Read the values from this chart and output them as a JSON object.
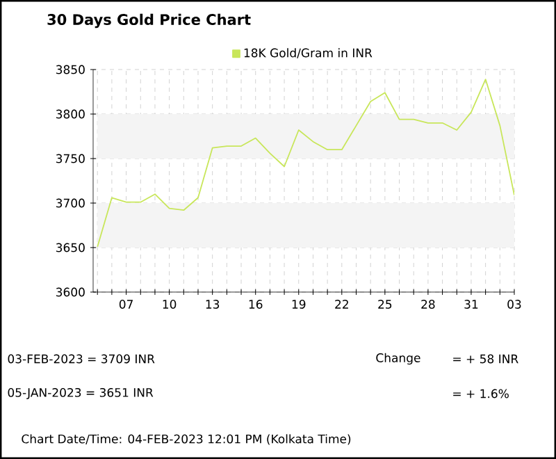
{
  "chart_data": {
    "type": "line",
    "title": "30 Days Gold Price Chart",
    "x": [
      "2023-01-05",
      "2023-01-06",
      "2023-01-07",
      "2023-01-08",
      "2023-01-09",
      "2023-01-10",
      "2023-01-11",
      "2023-01-12",
      "2023-01-13",
      "2023-01-14",
      "2023-01-15",
      "2023-01-16",
      "2023-01-17",
      "2023-01-18",
      "2023-01-19",
      "2023-01-20",
      "2023-01-21",
      "2023-01-22",
      "2023-01-23",
      "2023-01-24",
      "2023-01-25",
      "2023-01-26",
      "2023-01-27",
      "2023-01-28",
      "2023-01-29",
      "2023-01-30",
      "2023-01-31",
      "2023-02-01",
      "2023-02-02",
      "2023-02-03"
    ],
    "series": [
      {
        "name": "18K Gold/Gram  in INR",
        "color": "#c8e65a",
        "values": [
          3651,
          3706,
          3701,
          3701,
          3710,
          3694,
          3692,
          3706,
          3762,
          3764,
          3764,
          3773,
          3756,
          3741,
          3782,
          3769,
          3760,
          3760,
          3787,
          3814,
          3824,
          3794,
          3794,
          3790,
          3790,
          3782,
          3802,
          3839,
          3787,
          3709
        ]
      }
    ],
    "xlim": [
      "2023-01-05",
      "2023-02-03"
    ],
    "xticks": [
      {
        "value": "2023-01-05",
        "label": null
      },
      {
        "value": "2023-01-06",
        "label": null
      },
      {
        "value": "2023-01-07",
        "label": "07"
      },
      {
        "value": "2023-01-08",
        "label": null
      },
      {
        "value": "2023-01-09",
        "label": null
      },
      {
        "value": "2023-01-10",
        "label": "10"
      },
      {
        "value": "2023-01-11",
        "label": null
      },
      {
        "value": "2023-01-12",
        "label": null
      },
      {
        "value": "2023-01-13",
        "label": "13"
      },
      {
        "value": "2023-01-14",
        "label": null
      },
      {
        "value": "2023-01-15",
        "label": null
      },
      {
        "value": "2023-01-16",
        "label": "16"
      },
      {
        "value": "2023-01-17",
        "label": null
      },
      {
        "value": "2023-01-18",
        "label": null
      },
      {
        "value": "2023-01-19",
        "label": "19"
      },
      {
        "value": "2023-01-20",
        "label": null
      },
      {
        "value": "2023-01-21",
        "label": null
      },
      {
        "value": "2023-01-22",
        "label": "22"
      },
      {
        "value": "2023-01-23",
        "label": null
      },
      {
        "value": "2023-01-24",
        "label": null
      },
      {
        "value": "2023-01-25",
        "label": "25"
      },
      {
        "value": "2023-01-26",
        "label": null
      },
      {
        "value": "2023-01-27",
        "label": null
      },
      {
        "value": "2023-01-28",
        "label": "28"
      },
      {
        "value": "2023-01-29",
        "label": null
      },
      {
        "value": "2023-01-30",
        "label": null
      },
      {
        "value": "2023-01-31",
        "label": "31"
      },
      {
        "value": "2023-02-01",
        "label": null
      },
      {
        "value": "2023-02-02",
        "label": null
      },
      {
        "value": "2023-02-03",
        "label": "03"
      }
    ],
    "ylim": [
      3600,
      3850
    ],
    "yticks": [
      3600,
      3650,
      3700,
      3750,
      3800,
      3850
    ],
    "bands": [
      {
        "axis": "y",
        "from": 3650,
        "to": 3700,
        "color": "#f4f4f4"
      },
      {
        "axis": "y",
        "from": 3750,
        "to": 3800,
        "color": "#f4f4f4"
      }
    ],
    "grid": true,
    "legend": "top",
    "marker": "none",
    "line_style": "solid",
    "annotations": [
      "03-FEB-2023 = 3709 INR",
      "05-JAN-2023 = 3651 INR",
      "Change",
      "= + 58 INR",
      "= + 1.6%",
      "Chart Date/Time: 04-FEB-2023 12:01 PM (Kolkata Time)"
    ]
  }
}
